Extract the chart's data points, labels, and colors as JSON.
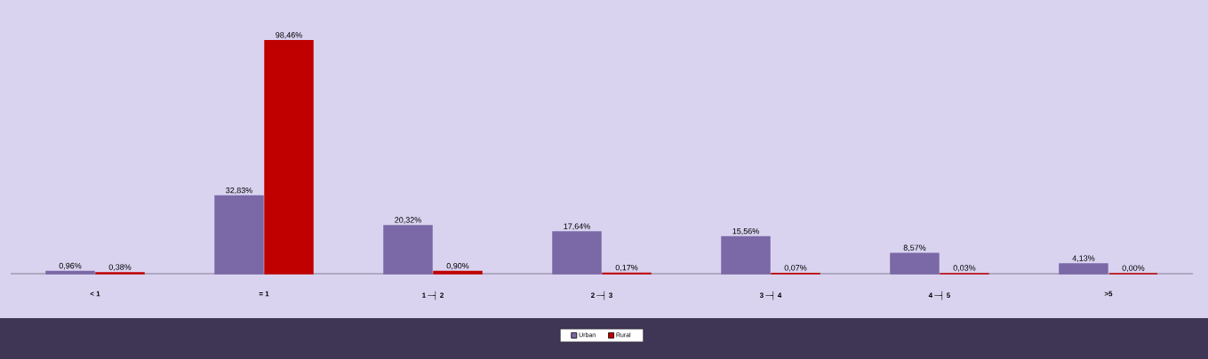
{
  "chart_data": {
    "type": "bar",
    "categories": [
      "< 1",
      "= 1",
      "1 ─┤ 2",
      "2 ─┤ 3",
      "3 ─┤ 4",
      "4 ─┤ 5",
      ">5"
    ],
    "series": [
      {
        "name": "Urban",
        "color": "#7b68a6",
        "values": [
          0.96,
          32.83,
          20.32,
          17.64,
          15.56,
          8.57,
          4.13
        ],
        "value_labels": [
          "0,96%",
          "32,83%",
          "20,32%",
          "17,64%",
          "15,56%",
          "8,57%",
          "4,13%"
        ]
      },
      {
        "name": "Rural",
        "color": "#c00000",
        "values": [
          0.38,
          98.46,
          0.9,
          0.17,
          0.07,
          0.03,
          0.0
        ],
        "value_labels": [
          "0,38%",
          "98,46%",
          "0,90%",
          "0,17%",
          "0,07%",
          "0,03%",
          "0,00%"
        ]
      }
    ],
    "legend": "bottom"
  }
}
